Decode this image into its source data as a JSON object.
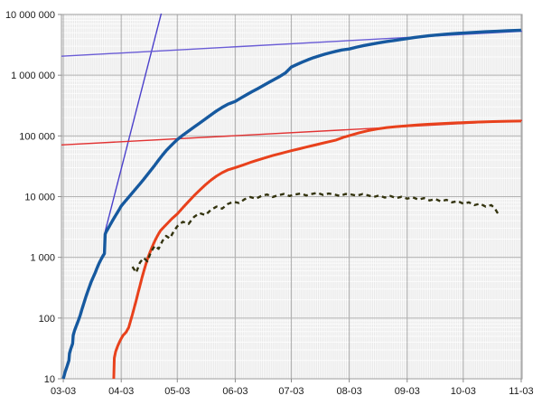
{
  "page": {
    "background": "#ffffff"
  },
  "chart_data": {
    "type": "line",
    "title": "",
    "xlabel": "",
    "ylabel": "",
    "yscale": "log",
    "ylim": [
      10,
      10000000
    ],
    "x_range_days": [
      -1,
      245.5
    ],
    "legend": "none",
    "grid": "gray panel, white minor grid (daily vertical + log minor horizontal), gray major grid (monthly vertical + decade horizontal)",
    "x_ticks": [
      {
        "day": 0,
        "label": "03-03"
      },
      {
        "day": 31,
        "label": "04-03"
      },
      {
        "day": 61,
        "label": "05-03"
      },
      {
        "day": 92,
        "label": "06-03"
      },
      {
        "day": 122,
        "label": "07-03"
      },
      {
        "day": 153,
        "label": "08-03"
      },
      {
        "day": 184,
        "label": "09-03"
      },
      {
        "day": 214,
        "label": "10-03"
      },
      {
        "day": 245,
        "label": "11-03"
      }
    ],
    "y_ticks": [
      {
        "value": 10,
        "label": "10"
      },
      {
        "value": 100,
        "label": "100"
      },
      {
        "value": 1000,
        "label": "1 000"
      },
      {
        "value": 10000,
        "label": "10 000"
      },
      {
        "value": 100000,
        "label": "100 000"
      },
      {
        "value": 1000000,
        "label": "1 000 000"
      },
      {
        "value": 10000000,
        "label": "10 000 000"
      }
    ],
    "panel": {
      "bg": "#e9e9e9",
      "minor_grid": "#ffffff",
      "major_grid": "#b3b3b3",
      "border": "#9e9e9e",
      "tick_color": "#8a8a8a",
      "label_color": "#1a1a1a"
    },
    "series": [
      {
        "name": "trend-exponential-steep-blue",
        "color": "#4b40cb",
        "width": 1.4,
        "dash": null,
        "points": [
          [
            22,
            2400
          ],
          [
            53.5,
            14000000
          ]
        ]
      },
      {
        "name": "trend-exponential-shallow-blue",
        "color": "#6a5cd6",
        "width": 1.4,
        "dash": null,
        "points": [
          [
            -1,
            2050000
          ],
          [
            245.5,
            5300000
          ]
        ]
      },
      {
        "name": "trend-red",
        "color": "#e23333",
        "width": 1.4,
        "dash": null,
        "points": [
          [
            -1,
            71000
          ],
          [
            245.5,
            180000
          ]
        ]
      },
      {
        "name": "cumulative-red-thick",
        "color": "#e8411c",
        "width": 3,
        "dash": null,
        "points": [
          [
            27,
            10
          ],
          [
            27.3,
            22
          ],
          [
            28,
            28
          ],
          [
            29,
            34
          ],
          [
            30,
            40
          ],
          [
            31,
            46
          ],
          [
            32,
            52
          ],
          [
            33.5,
            58
          ],
          [
            35,
            70
          ],
          [
            36,
            90
          ],
          [
            37,
            115
          ],
          [
            38,
            150
          ],
          [
            39,
            195
          ],
          [
            40,
            260
          ],
          [
            41,
            340
          ],
          [
            42,
            450
          ],
          [
            43,
            580
          ],
          [
            44,
            740
          ],
          [
            45,
            930
          ],
          [
            46,
            1130
          ],
          [
            47,
            1350
          ],
          [
            48,
            1600
          ],
          [
            49,
            1870
          ],
          [
            50,
            2150
          ],
          [
            51,
            2450
          ],
          [
            52,
            2750
          ],
          [
            54,
            3200
          ],
          [
            56,
            3700
          ],
          [
            58,
            4300
          ],
          [
            61,
            5200
          ],
          [
            64,
            6600
          ],
          [
            67,
            8300
          ],
          [
            70,
            10400
          ],
          [
            73,
            12800
          ],
          [
            76,
            15600
          ],
          [
            79,
            18700
          ],
          [
            82,
            21800
          ],
          [
            85,
            24800
          ],
          [
            88,
            27500
          ],
          [
            92,
            30000
          ],
          [
            96,
            33000
          ],
          [
            100,
            36500
          ],
          [
            104,
            40000
          ],
          [
            108,
            43500
          ],
          [
            112,
            47500
          ],
          [
            116,
            51000
          ],
          [
            122,
            57000
          ],
          [
            126,
            61000
          ],
          [
            130,
            65500
          ],
          [
            134,
            70000
          ],
          [
            138,
            75000
          ],
          [
            142,
            80000
          ],
          [
            146,
            85500
          ],
          [
            150,
            95000
          ],
          [
            153,
            101000
          ],
          [
            158,
            112000
          ],
          [
            163,
            122000
          ],
          [
            168,
            130000
          ],
          [
            173,
            137000
          ],
          [
            178,
            142000
          ],
          [
            184,
            147000
          ],
          [
            190,
            152000
          ],
          [
            196,
            156000
          ],
          [
            202,
            159500
          ],
          [
            208,
            162500
          ],
          [
            214,
            165500
          ],
          [
            222,
            169000
          ],
          [
            230,
            172000
          ],
          [
            238,
            174000
          ],
          [
            245,
            176000
          ]
        ]
      },
      {
        "name": "cumulative-blue-thick",
        "color": "#16599f",
        "width": 3.4,
        "dash": null,
        "points": [
          [
            0,
            10
          ],
          [
            1,
            13
          ],
          [
            2,
            16
          ],
          [
            3,
            20
          ],
          [
            3.3,
            26
          ],
          [
            4,
            31
          ],
          [
            5,
            38
          ],
          [
            5.3,
            52
          ],
          [
            6,
            62
          ],
          [
            7,
            75
          ],
          [
            8,
            90
          ],
          [
            9,
            110
          ],
          [
            10,
            140
          ],
          [
            11,
            175
          ],
          [
            12,
            220
          ],
          [
            13,
            270
          ],
          [
            14,
            330
          ],
          [
            15,
            400
          ],
          [
            16,
            470
          ],
          [
            17,
            550
          ],
          [
            18,
            660
          ],
          [
            19,
            780
          ],
          [
            20,
            900
          ],
          [
            21,
            1030
          ],
          [
            22,
            1150
          ],
          [
            22.4,
            2400
          ],
          [
            23,
            2650
          ],
          [
            24,
            3000
          ],
          [
            25,
            3400
          ],
          [
            26,
            3850
          ],
          [
            27,
            4350
          ],
          [
            28,
            4900
          ],
          [
            29,
            5500
          ],
          [
            30,
            6200
          ],
          [
            31,
            7000
          ],
          [
            33,
            8300
          ],
          [
            35,
            9800
          ],
          [
            37,
            11600
          ],
          [
            39,
            13700
          ],
          [
            41,
            16200
          ],
          [
            43,
            19200
          ],
          [
            45,
            23000
          ],
          [
            47,
            27500
          ],
          [
            49,
            33000
          ],
          [
            51,
            40000
          ],
          [
            53,
            48000
          ],
          [
            55,
            57000
          ],
          [
            57,
            66000
          ],
          [
            59,
            76000
          ],
          [
            61,
            87000
          ],
          [
            64,
            103000
          ],
          [
            67,
            120000
          ],
          [
            70,
            140000
          ],
          [
            73,
            163000
          ],
          [
            76,
            190000
          ],
          [
            79,
            222000
          ],
          [
            82,
            258000
          ],
          [
            85,
            295000
          ],
          [
            88,
            332000
          ],
          [
            92,
            370000
          ],
          [
            95,
            420000
          ],
          [
            98,
            475000
          ],
          [
            101,
            535000
          ],
          [
            104,
            600000
          ],
          [
            107,
            675000
          ],
          [
            110,
            760000
          ],
          [
            113,
            855000
          ],
          [
            116,
            960000
          ],
          [
            119,
            1100000
          ],
          [
            122,
            1360000
          ],
          [
            125,
            1500000
          ],
          [
            128,
            1650000
          ],
          [
            131,
            1800000
          ],
          [
            134,
            1950000
          ],
          [
            137,
            2080000
          ],
          [
            140,
            2220000
          ],
          [
            143,
            2350000
          ],
          [
            146,
            2480000
          ],
          [
            149,
            2600000
          ],
          [
            153,
            2700000
          ],
          [
            157,
            2900000
          ],
          [
            161,
            3080000
          ],
          [
            165,
            3250000
          ],
          [
            169,
            3420000
          ],
          [
            173,
            3580000
          ],
          [
            177,
            3730000
          ],
          [
            181,
            3880000
          ],
          [
            184,
            4000000
          ],
          [
            188,
            4180000
          ],
          [
            192,
            4330000
          ],
          [
            196,
            4470000
          ],
          [
            200,
            4600000
          ],
          [
            204,
            4720000
          ],
          [
            208,
            4820000
          ],
          [
            214,
            4950000
          ],
          [
            220,
            5080000
          ],
          [
            226,
            5200000
          ],
          [
            232,
            5300000
          ],
          [
            238,
            5400000
          ],
          [
            245,
            5500000
          ]
        ]
      },
      {
        "name": "daily-new-dotted-olive",
        "color": "#33330e",
        "width": 2.4,
        "dash": "5 4",
        "points": [
          [
            37,
            700
          ],
          [
            39,
            560
          ],
          [
            41,
            820
          ],
          [
            43,
            980
          ],
          [
            45,
            860
          ],
          [
            47,
            1250
          ],
          [
            49,
            1550
          ],
          [
            51,
            1380
          ],
          [
            53,
            1850
          ],
          [
            55,
            2250
          ],
          [
            57,
            2050
          ],
          [
            59,
            2650
          ],
          [
            61,
            3250
          ],
          [
            64,
            3850
          ],
          [
            67,
            3550
          ],
          [
            70,
            4650
          ],
          [
            73,
            5350
          ],
          [
            76,
            4950
          ],
          [
            79,
            6050
          ],
          [
            82,
            6850
          ],
          [
            85,
            6350
          ],
          [
            88,
            7550
          ],
          [
            91,
            8250
          ],
          [
            94,
            7850
          ],
          [
            97,
            9050
          ],
          [
            100,
            9850
          ],
          [
            103,
            9250
          ],
          [
            106,
            10250
          ],
          [
            109,
            10850
          ],
          [
            112,
            9850
          ],
          [
            115,
            10550
          ],
          [
            118,
            11050
          ],
          [
            121,
            10250
          ],
          [
            124,
            10850
          ],
          [
            127,
            11250
          ],
          [
            130,
            10450
          ],
          [
            133,
            11050
          ],
          [
            136,
            11550
          ],
          [
            139,
            10650
          ],
          [
            142,
            11250
          ],
          [
            145,
            10850
          ],
          [
            148,
            10250
          ],
          [
            151,
            11050
          ],
          [
            154,
            10850
          ],
          [
            157,
            10350
          ],
          [
            160,
            11000
          ],
          [
            163,
            10500
          ],
          [
            166,
            9850
          ],
          [
            169,
            10450
          ],
          [
            172,
            9650
          ],
          [
            175,
            10250
          ],
          [
            178,
            9450
          ],
          [
            181,
            9950
          ],
          [
            184,
            9250
          ],
          [
            187,
            9750
          ],
          [
            190,
            8950
          ],
          [
            193,
            9450
          ],
          [
            196,
            8650
          ],
          [
            199,
            9150
          ],
          [
            202,
            8350
          ],
          [
            205,
            8850
          ],
          [
            208,
            8050
          ],
          [
            211,
            8450
          ],
          [
            214,
            7650
          ],
          [
            217,
            8050
          ],
          [
            220,
            7250
          ],
          [
            223,
            7650
          ],
          [
            226,
            6850
          ],
          [
            229,
            7250
          ],
          [
            231,
            6350
          ],
          [
            232,
            5600
          ],
          [
            233,
            5050
          ]
        ]
      }
    ]
  }
}
